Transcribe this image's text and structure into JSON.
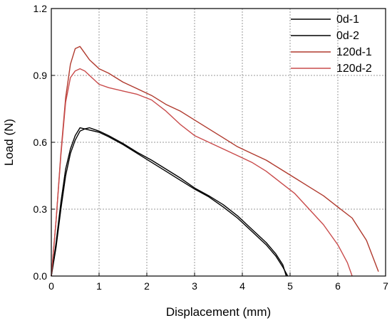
{
  "chart_data": {
    "type": "line",
    "xlabel": "Displacement (mm)",
    "ylabel": "Load (N)",
    "xlim": [
      0,
      7
    ],
    "ylim": [
      0,
      1.2
    ],
    "xticks": [
      0,
      1,
      2,
      3,
      4,
      5,
      6,
      7
    ],
    "yticks": [
      0.0,
      0.3,
      0.6,
      0.9,
      1.2
    ],
    "xtick_labels": [
      "0",
      "1",
      "2",
      "3",
      "4",
      "5",
      "6",
      "7"
    ],
    "ytick_labels": [
      "0.0",
      "0.3",
      "0.6",
      "0.9",
      "1.2"
    ],
    "grid": true,
    "legend_position": "top-right",
    "series": [
      {
        "name": "0d-1",
        "color": "#000000",
        "x": [
          0,
          0.1,
          0.2,
          0.3,
          0.4,
          0.5,
          0.6,
          0.7,
          0.8,
          1.0,
          1.2,
          1.5,
          1.8,
          2.1,
          2.4,
          2.7,
          3.0,
          3.3,
          3.6,
          3.9,
          4.2,
          4.5,
          4.7,
          4.85,
          4.95
        ],
        "y": [
          0,
          0.15,
          0.33,
          0.48,
          0.57,
          0.63,
          0.665,
          0.66,
          0.655,
          0.645,
          0.625,
          0.59,
          0.55,
          0.51,
          0.47,
          0.43,
          0.39,
          0.355,
          0.31,
          0.26,
          0.2,
          0.14,
          0.09,
          0.04,
          0.0
        ]
      },
      {
        "name": "0d-2",
        "color": "#000000",
        "x": [
          0,
          0.1,
          0.2,
          0.3,
          0.4,
          0.5,
          0.6,
          0.7,
          0.8,
          1.0,
          1.2,
          1.5,
          1.8,
          2.1,
          2.4,
          2.7,
          3.0,
          3.3,
          3.6,
          3.9,
          4.2,
          4.5,
          4.7,
          4.85,
          4.92
        ],
        "y": [
          0,
          0.13,
          0.3,
          0.45,
          0.55,
          0.61,
          0.65,
          0.66,
          0.665,
          0.65,
          0.63,
          0.595,
          0.555,
          0.52,
          0.48,
          0.44,
          0.395,
          0.36,
          0.32,
          0.27,
          0.21,
          0.15,
          0.1,
          0.05,
          0.0
        ]
      },
      {
        "name": "120d-1",
        "color": "#b03a2e",
        "x": [
          0,
          0.1,
          0.2,
          0.3,
          0.4,
          0.5,
          0.6,
          0.7,
          0.8,
          0.9,
          1.0,
          1.2,
          1.5,
          1.8,
          2.1,
          2.4,
          2.7,
          3.0,
          3.3,
          3.6,
          3.9,
          4.2,
          4.5,
          4.8,
          5.1,
          5.4,
          5.7,
          6.0,
          6.3,
          6.6,
          6.85
        ],
        "y": [
          0,
          0.25,
          0.55,
          0.8,
          0.95,
          1.02,
          1.03,
          1.0,
          0.97,
          0.95,
          0.93,
          0.91,
          0.87,
          0.84,
          0.81,
          0.77,
          0.74,
          0.7,
          0.66,
          0.62,
          0.58,
          0.55,
          0.52,
          0.48,
          0.44,
          0.4,
          0.36,
          0.31,
          0.26,
          0.16,
          0.02
        ]
      },
      {
        "name": "120d-2",
        "color": "#c94b4b",
        "x": [
          0,
          0.1,
          0.2,
          0.3,
          0.4,
          0.5,
          0.6,
          0.7,
          0.8,
          0.9,
          1.0,
          1.2,
          1.5,
          1.8,
          2.1,
          2.4,
          2.7,
          3.0,
          3.3,
          3.6,
          3.9,
          4.2,
          4.5,
          4.8,
          5.1,
          5.4,
          5.7,
          6.0,
          6.2,
          6.3
        ],
        "y": [
          0,
          0.25,
          0.54,
          0.78,
          0.89,
          0.92,
          0.93,
          0.92,
          0.9,
          0.88,
          0.86,
          0.845,
          0.83,
          0.815,
          0.79,
          0.74,
          0.68,
          0.63,
          0.6,
          0.57,
          0.54,
          0.51,
          0.47,
          0.42,
          0.37,
          0.3,
          0.23,
          0.14,
          0.06,
          0.0
        ]
      }
    ]
  }
}
